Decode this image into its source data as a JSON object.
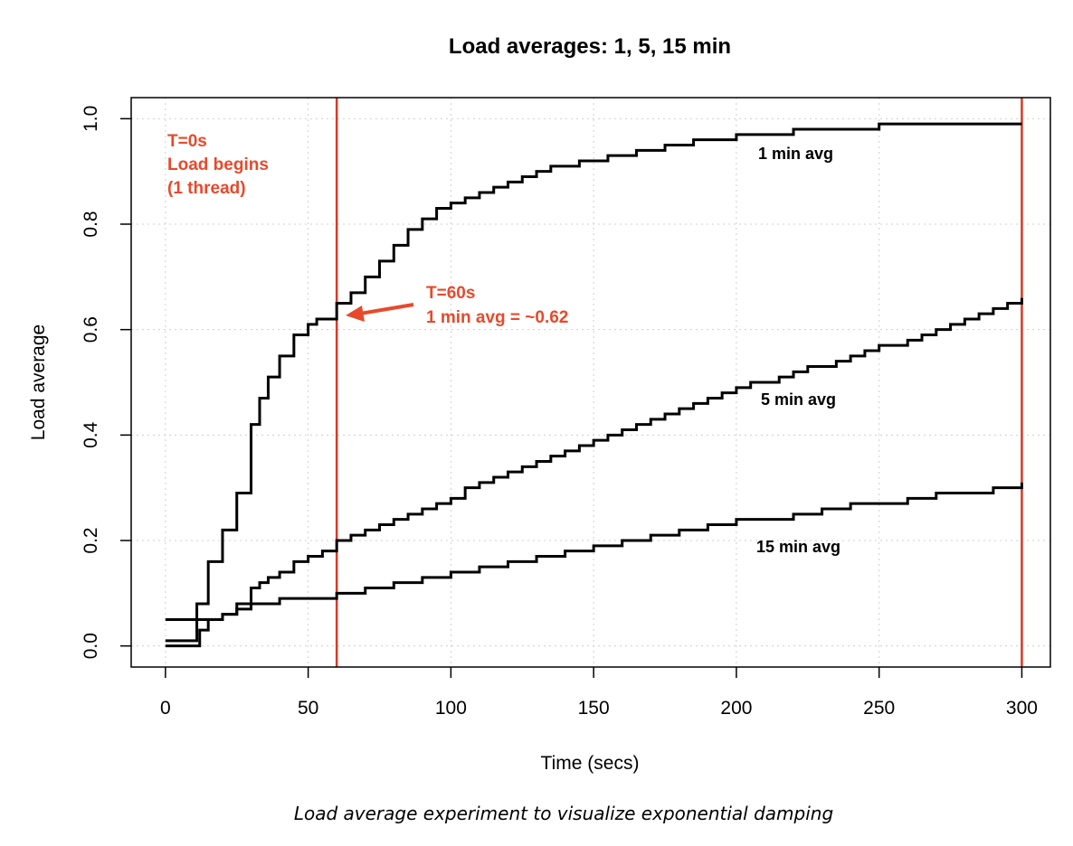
{
  "chart_data": {
    "type": "line",
    "step": true,
    "title": "Load averages: 1, 5, 15 min",
    "xlabel": "Time (secs)",
    "ylabel": "Load average",
    "xlim": [
      -12,
      310
    ],
    "ylim": [
      -0.04,
      1.04
    ],
    "xticks": [
      0,
      50,
      100,
      150,
      200,
      250,
      300
    ],
    "yticks": [
      0.0,
      0.2,
      0.4,
      0.6,
      0.8,
      1.0
    ],
    "xtick_labels": [
      "0",
      "50",
      "100",
      "150",
      "200",
      "250",
      "300"
    ],
    "ytick_labels": [
      "0.0",
      "0.2",
      "0.4",
      "0.6",
      "0.8",
      "1.0"
    ],
    "grid": true,
    "series": [
      {
        "name": "1 min avg",
        "x": [
          0,
          10,
          11,
          15,
          20,
          25,
          30,
          33,
          36,
          40,
          45,
          50,
          53,
          57,
          60,
          62,
          65,
          70,
          75,
          80,
          85,
          90,
          95,
          100,
          105,
          110,
          115,
          120,
          125,
          130,
          135,
          140,
          145,
          150,
          155,
          160,
          165,
          170,
          175,
          180,
          185,
          190,
          195,
          200,
          205,
          210,
          215,
          220,
          225,
          230,
          240,
          250,
          300
        ],
        "values": [
          0.01,
          0.01,
          0.08,
          0.16,
          0.22,
          0.29,
          0.42,
          0.47,
          0.51,
          0.55,
          0.59,
          0.61,
          0.62,
          0.62,
          0.65,
          0.65,
          0.67,
          0.7,
          0.73,
          0.76,
          0.79,
          0.81,
          0.83,
          0.84,
          0.85,
          0.86,
          0.87,
          0.88,
          0.89,
          0.9,
          0.91,
          0.91,
          0.92,
          0.92,
          0.93,
          0.93,
          0.94,
          0.94,
          0.95,
          0.95,
          0.96,
          0.96,
          0.96,
          0.97,
          0.97,
          0.97,
          0.97,
          0.98,
          0.98,
          0.98,
          0.98,
          0.99,
          0.99
        ]
      },
      {
        "name": "5 min avg",
        "x": [
          0,
          10,
          12,
          15,
          20,
          25,
          30,
          33,
          36,
          40,
          45,
          50,
          55,
          60,
          65,
          70,
          75,
          80,
          85,
          90,
          95,
          100,
          105,
          110,
          115,
          120,
          125,
          130,
          135,
          140,
          145,
          150,
          155,
          160,
          165,
          170,
          175,
          180,
          185,
          190,
          195,
          200,
          205,
          210,
          215,
          220,
          225,
          230,
          235,
          240,
          245,
          250,
          255,
          260,
          265,
          270,
          275,
          280,
          285,
          290,
          295,
          300
        ],
        "values": [
          0.0,
          0.0,
          0.03,
          0.05,
          0.06,
          0.08,
          0.11,
          0.12,
          0.13,
          0.14,
          0.16,
          0.17,
          0.18,
          0.2,
          0.21,
          0.22,
          0.23,
          0.24,
          0.25,
          0.26,
          0.27,
          0.28,
          0.3,
          0.31,
          0.32,
          0.33,
          0.34,
          0.35,
          0.36,
          0.37,
          0.38,
          0.39,
          0.4,
          0.41,
          0.42,
          0.43,
          0.44,
          0.45,
          0.46,
          0.47,
          0.48,
          0.49,
          0.5,
          0.5,
          0.51,
          0.52,
          0.53,
          0.53,
          0.54,
          0.55,
          0.56,
          0.57,
          0.57,
          0.58,
          0.59,
          0.6,
          0.61,
          0.62,
          0.63,
          0.64,
          0.65,
          0.66
        ]
      },
      {
        "name": "15 min avg",
        "x": [
          0,
          10,
          15,
          20,
          25,
          30,
          35,
          40,
          50,
          60,
          70,
          80,
          90,
          100,
          110,
          120,
          130,
          140,
          150,
          160,
          170,
          180,
          190,
          200,
          210,
          220,
          230,
          240,
          250,
          260,
          270,
          280,
          290,
          300
        ],
        "values": [
          0.05,
          0.05,
          0.05,
          0.06,
          0.07,
          0.08,
          0.08,
          0.09,
          0.09,
          0.1,
          0.11,
          0.12,
          0.13,
          0.14,
          0.15,
          0.16,
          0.17,
          0.18,
          0.19,
          0.2,
          0.21,
          0.22,
          0.23,
          0.24,
          0.24,
          0.25,
          0.26,
          0.27,
          0.27,
          0.28,
          0.29,
          0.29,
          0.3,
          0.31
        ]
      }
    ],
    "vlines": [
      {
        "x": 60,
        "color": "#d63a27"
      },
      {
        "x": 300,
        "color": "#d63a27"
      }
    ],
    "annotations": [
      {
        "name": "load-begins-note",
        "color": "#e8492b",
        "lines": [
          "T=0s",
          "Load begins",
          "(1 thread)"
        ]
      },
      {
        "name": "t60-note",
        "color": "#e8492b",
        "lines": [
          "T=60s",
          "1 min avg = ~0.62"
        ]
      },
      {
        "name": "series-label-1min",
        "color": "#000000",
        "lines": [
          "1 min avg"
        ]
      },
      {
        "name": "series-label-5min",
        "color": "#000000",
        "lines": [
          "5 min avg"
        ]
      },
      {
        "name": "series-label-15min",
        "color": "#000000",
        "lines": [
          "15 min avg"
        ]
      }
    ]
  },
  "caption": "Load average experiment to visualize exponential damping"
}
